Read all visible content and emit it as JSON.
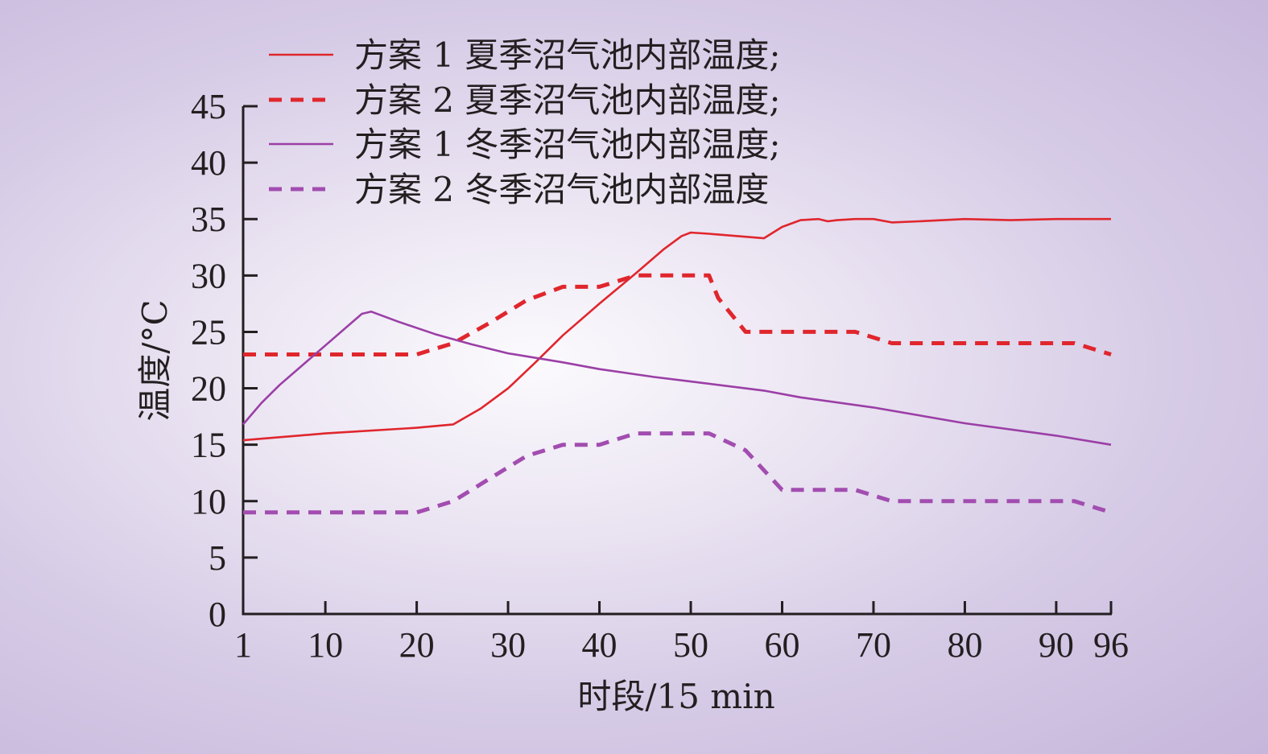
{
  "chart_data": {
    "type": "line",
    "xlabel": "时段/15 min",
    "ylabel": "温度/°C",
    "xlim": [
      1,
      96
    ],
    "ylim": [
      0,
      45
    ],
    "x_ticks": [
      1,
      10,
      20,
      30,
      40,
      50,
      60,
      70,
      80,
      90,
      96
    ],
    "y_ticks": [
      0,
      5,
      10,
      15,
      20,
      25,
      30,
      35,
      40,
      45
    ],
    "grid": false,
    "legend_position": "top",
    "series": [
      {
        "name": "方案 1 夏季沼气池内部温度;",
        "color": "#e0262d",
        "dash": "solid",
        "points": [
          [
            1,
            15.4
          ],
          [
            10,
            16.0
          ],
          [
            20,
            16.5
          ],
          [
            24,
            16.8
          ],
          [
            27,
            18.2
          ],
          [
            30,
            20.0
          ],
          [
            33,
            22.3
          ],
          [
            36,
            24.7
          ],
          [
            40,
            27.5
          ],
          [
            44,
            30.2
          ],
          [
            47,
            32.3
          ],
          [
            49,
            33.5
          ],
          [
            50,
            33.8
          ],
          [
            52,
            33.7
          ],
          [
            55,
            33.5
          ],
          [
            58,
            33.3
          ],
          [
            60,
            34.3
          ],
          [
            62,
            34.9
          ],
          [
            64,
            35.0
          ],
          [
            65,
            34.8
          ],
          [
            66,
            34.9
          ],
          [
            68,
            35.0
          ],
          [
            70,
            35.0
          ],
          [
            72,
            34.7
          ],
          [
            75,
            34.8
          ],
          [
            80,
            35.0
          ],
          [
            85,
            34.9
          ],
          [
            90,
            35.0
          ],
          [
            96,
            35.0
          ]
        ]
      },
      {
        "name": "方案 2 夏季沼气池内部温度;",
        "color": "#e0262d",
        "dash": "dashed",
        "points": [
          [
            1,
            23
          ],
          [
            20,
            23
          ],
          [
            24,
            24
          ],
          [
            28,
            25.8
          ],
          [
            32,
            27.8
          ],
          [
            36,
            29
          ],
          [
            40,
            29
          ],
          [
            44,
            30
          ],
          [
            52,
            30
          ],
          [
            53,
            28
          ],
          [
            56,
            25
          ],
          [
            68,
            25
          ],
          [
            72,
            24
          ],
          [
            92,
            24
          ],
          [
            96,
            23
          ]
        ]
      },
      {
        "name": "方案 1 冬季沼气池内部温度;",
        "color": "#9b3fa6",
        "dash": "solid",
        "points": [
          [
            1,
            16.8
          ],
          [
            3,
            18.7
          ],
          [
            5,
            20.3
          ],
          [
            8,
            22.4
          ],
          [
            10,
            23.8
          ],
          [
            12,
            25.2
          ],
          [
            14,
            26.6
          ],
          [
            15,
            26.8
          ],
          [
            18,
            25.9
          ],
          [
            22,
            24.8
          ],
          [
            26,
            23.9
          ],
          [
            30,
            23.1
          ],
          [
            36,
            22.3
          ],
          [
            40,
            21.7
          ],
          [
            46,
            21.0
          ],
          [
            50,
            20.6
          ],
          [
            58,
            19.8
          ],
          [
            62,
            19.2
          ],
          [
            70,
            18.3
          ],
          [
            80,
            16.9
          ],
          [
            90,
            15.8
          ],
          [
            96,
            15.0
          ]
        ]
      },
      {
        "name": "方案 2 冬季沼气池内部温度",
        "color": "#a24db0",
        "dash": "dashed",
        "points": [
          [
            1,
            9
          ],
          [
            20,
            9
          ],
          [
            24,
            10
          ],
          [
            28,
            12
          ],
          [
            32,
            14
          ],
          [
            36,
            15
          ],
          [
            40,
            15
          ],
          [
            44,
            16
          ],
          [
            52,
            16
          ],
          [
            56,
            14.5
          ],
          [
            60,
            11
          ],
          [
            68,
            11
          ],
          [
            72,
            10
          ],
          [
            92,
            10
          ],
          [
            96,
            9
          ]
        ]
      }
    ]
  }
}
